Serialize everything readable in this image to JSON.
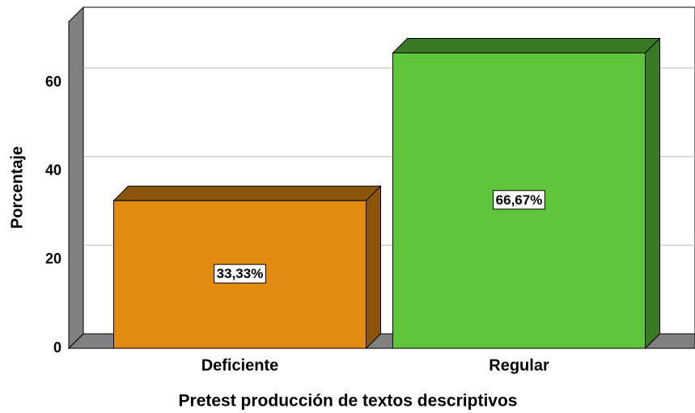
{
  "chart_data": {
    "type": "bar3d",
    "categories": [
      "Deficiente",
      "Regular"
    ],
    "values": [
      33.33,
      66.67
    ],
    "value_labels": [
      "33,33%",
      "66,67%"
    ],
    "colors": [
      "#e08a12",
      "#5ec43a"
    ],
    "ylabel": "Porcentaje",
    "xlabel": "Pretest producción de textos descriptivos",
    "ylim": [
      0,
      73.7
    ],
    "yticks": [
      0,
      20,
      40,
      60
    ],
    "grid": true
  }
}
